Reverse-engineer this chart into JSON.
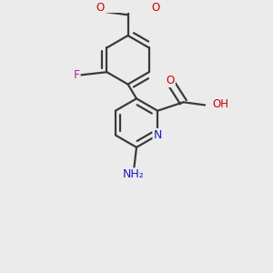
{
  "bg_color": "#ebebeb",
  "bond_color": "#3a3a3a",
  "bond_width": 1.6,
  "dbo": 0.018,
  "fs": 8.5,
  "figsize": [
    3.0,
    3.0
  ],
  "dpi": 100,
  "xlim": [
    0.05,
    0.95
  ],
  "ylim": [
    0.05,
    0.95
  ]
}
